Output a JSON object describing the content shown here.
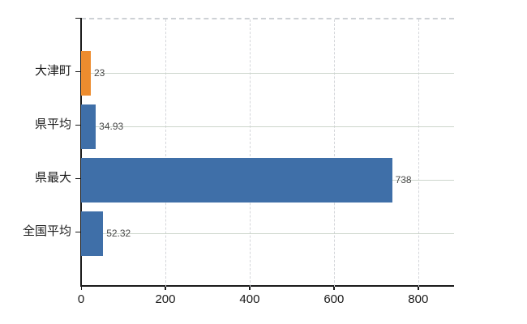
{
  "chart_data": {
    "type": "bar",
    "orientation": "horizontal",
    "categories": [
      "大津町",
      "県平均",
      "県最大",
      "全国平均"
    ],
    "values": [
      23,
      34.93,
      738,
      52.32
    ],
    "value_labels": [
      "23",
      "34.93",
      "738",
      "52.32"
    ],
    "bar_colors": [
      "#ED8C2E",
      "#3F6FA8",
      "#3F6FA8",
      "#3F6FA8"
    ],
    "x_ticks": [
      0,
      200,
      400,
      600,
      800
    ],
    "x_tick_labels": [
      "0",
      "200",
      "400",
      "600",
      "800"
    ],
    "xlim": [
      0,
      885
    ],
    "grid": {
      "vertical_dashed_at_ticks": true,
      "horizontal_at_category_centers": true,
      "top_border_dashed": true
    },
    "legend_position": "none"
  },
  "colors": {
    "bar_highlight_orange": "#ED8C2E",
    "bar_blue": "#3F6FA8",
    "axis": "#1a1a1a",
    "grid_vertical": "#d4d6da",
    "grid_horizontal": "#ccd5cb",
    "top_border": "#cdd1d5",
    "value_label": "#4a4a4a",
    "background": "#ffffff"
  }
}
